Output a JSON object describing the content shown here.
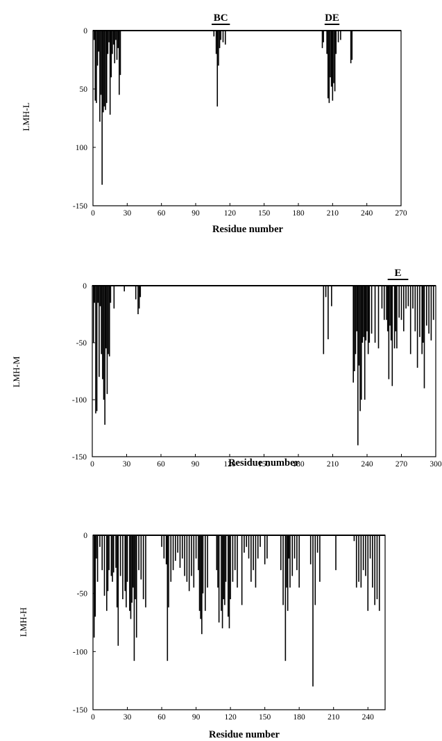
{
  "chart_data": [
    {
      "type": "bar",
      "ylabel": "LMH-L",
      "xlabel": "Residue number",
      "xlim": [
        0,
        270
      ],
      "ylim": [
        0,
        -150
      ],
      "xticks": [
        "0",
        "30",
        "60",
        "90",
        "120",
        "150",
        "180",
        "210",
        "240",
        "270"
      ],
      "yticks": [
        "0",
        "50",
        "100",
        "-150"
      ],
      "regions": [
        {
          "label": "BC",
          "start": 104,
          "end": 120
        },
        {
          "label": "DE",
          "start": 203,
          "end": 216
        }
      ],
      "x": [
        1,
        2,
        3,
        4,
        5,
        6,
        7,
        8,
        9,
        10,
        11,
        12,
        13,
        14,
        15,
        16,
        17,
        18,
        19,
        20,
        21,
        22,
        23,
        24,
        106,
        108,
        109,
        110,
        111,
        112,
        114,
        116,
        201,
        202,
        205,
        206,
        207,
        208,
        209,
        210,
        211,
        212,
        213,
        215,
        217,
        226,
        227
      ],
      "values": [
        -8,
        -60,
        -62,
        -30,
        -18,
        -78,
        -55,
        -132,
        -70,
        -65,
        -68,
        -62,
        -20,
        -10,
        -72,
        -40,
        -20,
        -12,
        -28,
        -8,
        -25,
        -15,
        -55,
        -38,
        -5,
        -20,
        -65,
        -30,
        -15,
        -8,
        -10,
        -12,
        -15,
        -10,
        -20,
        -58,
        -62,
        -40,
        -48,
        -60,
        -45,
        -52,
        -20,
        -10,
        -8,
        -28,
        -25
      ]
    },
    {
      "type": "bar",
      "ylabel": "LMH-M",
      "xlabel": "Residue number",
      "xlim": [
        0,
        300
      ],
      "ylim": [
        0,
        -150
      ],
      "xticks": [
        "0",
        "30",
        "60",
        "90",
        "120",
        "150",
        "180",
        "210",
        "240",
        "270",
        "300"
      ],
      "yticks": [
        "0",
        "-50",
        "-100",
        "-150"
      ],
      "regions": [
        {
          "label": "E",
          "start": 258,
          "end": 276
        }
      ],
      "x": [
        1,
        2,
        3,
        4,
        5,
        6,
        7,
        8,
        9,
        10,
        11,
        12,
        13,
        14,
        15,
        16,
        19,
        28,
        38,
        40,
        41,
        42,
        202,
        204,
        206,
        209,
        228,
        229,
        230,
        231,
        232,
        233,
        234,
        235,
        236,
        237,
        238,
        239,
        240,
        241,
        242,
        244,
        247,
        250,
        253,
        255,
        257,
        258,
        259,
        260,
        261,
        262,
        264,
        265,
        266,
        268,
        270,
        272,
        274,
        276,
        278,
        280,
        282,
        284,
        286,
        288,
        289,
        290,
        292,
        294,
        296,
        298
      ],
      "values": [
        -50,
        -15,
        -112,
        -110,
        -15,
        -80,
        -18,
        -60,
        -82,
        -100,
        -122,
        -55,
        -95,
        -60,
        -62,
        -15,
        -20,
        -5,
        -12,
        -25,
        -20,
        -10,
        -60,
        -10,
        -47,
        -18,
        -85,
        -75,
        -60,
        -40,
        -140,
        -70,
        -110,
        -100,
        -50,
        -45,
        -100,
        -48,
        -40,
        -60,
        -50,
        -42,
        -50,
        -55,
        -20,
        -30,
        -30,
        -40,
        -82,
        -35,
        -48,
        -88,
        -55,
        -40,
        -55,
        -28,
        -30,
        -40,
        -20,
        -18,
        -60,
        -20,
        -40,
        -72,
        -45,
        -60,
        -50,
        -90,
        -35,
        -42,
        -48,
        -30
      ]
    },
    {
      "type": "bar",
      "ylabel": "LMH-H",
      "xlabel": "Residue number",
      "xlim": [
        0,
        255
      ],
      "ylim": [
        0,
        -150
      ],
      "xticks": [
        "0",
        "30",
        "60",
        "90",
        "120",
        "150",
        "180",
        "210",
        "240"
      ],
      "yticks": [
        "0",
        "-50",
        "-100",
        "-150"
      ],
      "x": [
        1,
        2,
        3,
        4,
        6,
        8,
        10,
        12,
        13,
        14,
        16,
        17,
        18,
        20,
        21,
        22,
        24,
        26,
        28,
        29,
        30,
        32,
        33,
        34,
        35,
        36,
        37,
        38,
        40,
        42,
        44,
        46,
        60,
        62,
        64,
        65,
        66,
        68,
        70,
        72,
        74,
        76,
        78,
        80,
        82,
        84,
        86,
        88,
        90,
        92,
        93,
        94,
        95,
        96,
        98,
        100,
        108,
        109,
        110,
        112,
        113,
        114,
        115,
        116,
        118,
        119,
        120,
        122,
        124,
        126,
        130,
        132,
        134,
        136,
        138,
        140,
        142,
        144,
        146,
        150,
        152,
        164,
        166,
        168,
        169,
        170,
        171,
        172,
        174,
        176,
        178,
        180,
        190,
        192,
        194,
        196,
        198,
        212,
        228,
        230,
        232,
        234,
        236,
        238,
        240,
        242,
        244,
        246,
        248,
        250
      ],
      "values": [
        -88,
        -70,
        -20,
        -40,
        -10,
        -30,
        -52,
        -65,
        -48,
        -30,
        -35,
        -40,
        -32,
        -28,
        -62,
        -95,
        -35,
        -55,
        -48,
        -62,
        -40,
        -65,
        -72,
        -58,
        -45,
        -108,
        -55,
        -88,
        -30,
        -38,
        -55,
        -62,
        -10,
        -20,
        -25,
        -108,
        -62,
        -40,
        -30,
        -22,
        -15,
        -28,
        -20,
        -35,
        -40,
        -48,
        -35,
        -45,
        -20,
        -30,
        -65,
        -72,
        -85,
        -50,
        -65,
        -45,
        -30,
        -45,
        -75,
        -65,
        -80,
        -55,
        -60,
        -40,
        -70,
        -80,
        -55,
        -40,
        -30,
        -45,
        -60,
        -15,
        -10,
        -20,
        -40,
        -30,
        -45,
        -20,
        -10,
        -25,
        -20,
        -30,
        -60,
        -108,
        -45,
        -65,
        -20,
        -45,
        -35,
        -20,
        -30,
        -45,
        -25,
        -130,
        -60,
        -15,
        -40,
        -30,
        -5,
        -45,
        -40,
        -45,
        -30,
        -35,
        -65,
        -20,
        -45,
        -60,
        -55,
        -65
      ]
    }
  ]
}
